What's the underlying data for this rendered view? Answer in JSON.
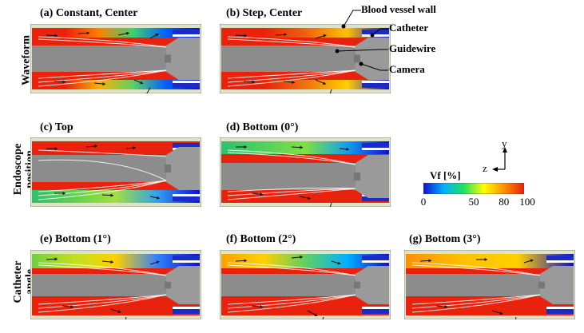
{
  "rows": {
    "r1": "Waveform",
    "r2a": "Endoscope",
    "r2b": "position",
    "r3a": "Catheter",
    "r3b": "angle"
  },
  "panels": {
    "a": "(a) Constant, Center",
    "b": "(b) Step, Center",
    "c": "(c) Top",
    "d": "(d) Bottom (0°)",
    "e": "(e) Bottom (1°)",
    "f": "(f) Bottom (2°)",
    "g": "(g) Bottom (3°)"
  },
  "callouts": {
    "wall": "Blood vessel wall",
    "catheter": "Catheter",
    "guidewire": "Guidewire",
    "camera": "Camera"
  },
  "colorbar": {
    "title": "Vf [%]",
    "ticks": [
      "0",
      "50",
      "80",
      "100"
    ],
    "range": [
      0,
      100
    ],
    "colors": [
      "#1010d0",
      "#00b0ff",
      "#20e060",
      "#ffff00",
      "#ff9000",
      "#e8200c"
    ]
  },
  "axes": {
    "y": "y",
    "z": "z"
  },
  "colors": {
    "fluid": "#e8220c",
    "wall": "#dde3c5",
    "device": "#8c8c8c",
    "catheter": "#1a2bc8"
  }
}
